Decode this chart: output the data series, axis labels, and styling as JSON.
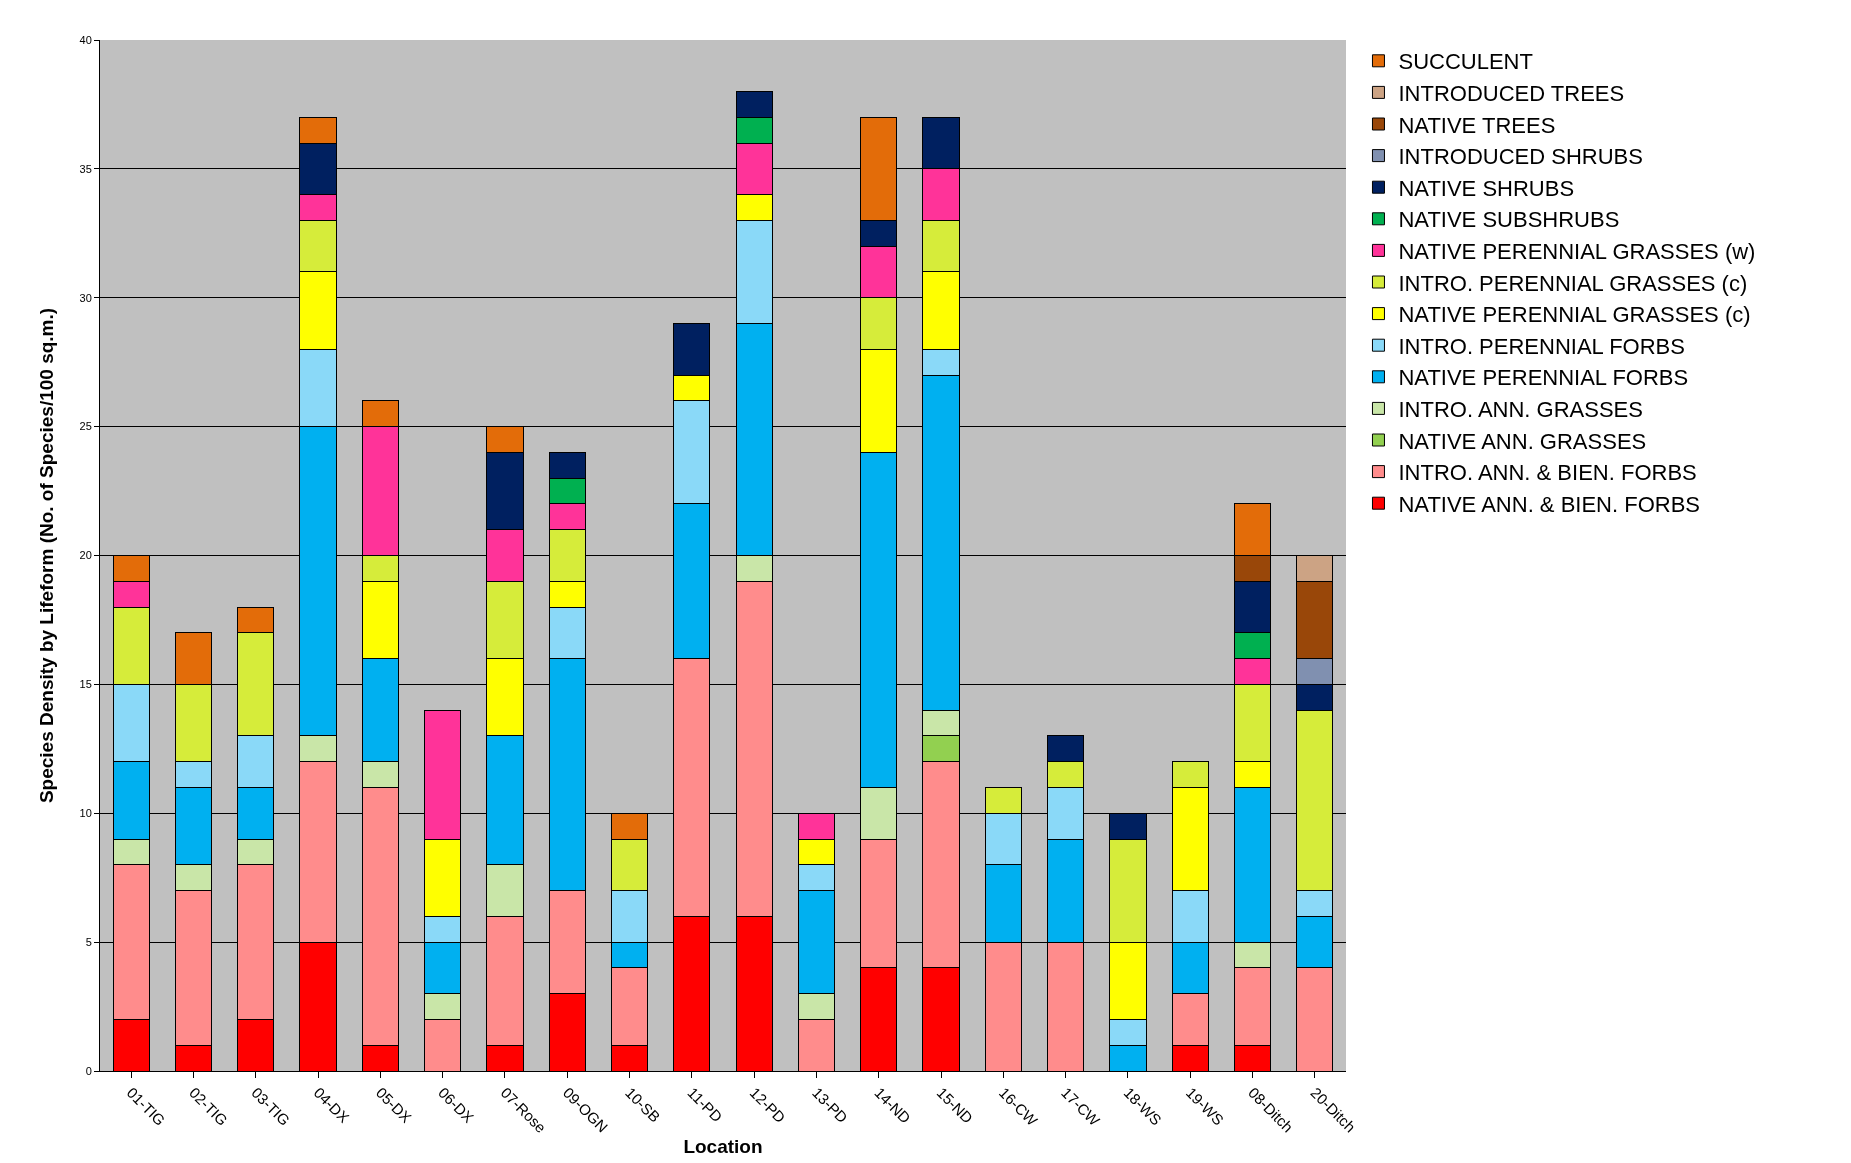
{
  "chart_data": {
    "type": "bar",
    "stacked": true,
    "xlabel": "Location",
    "ylabel": "Species Density by Lifeform (No. of Species/100 sq.m.)",
    "categories": [
      "01-TIG",
      "02-TIG",
      "03-TIG",
      "04-DX",
      "05-DX",
      "06-DX",
      "07-Rose",
      "09-OGN",
      "10-SB",
      "11-PD",
      "12-PD",
      "13-PD",
      "14-ND",
      "15-ND",
      "16-CW",
      "17-CW",
      "18-WS",
      "19-WS",
      "08-Ditch",
      "20-Ditch"
    ],
    "ylim": [
      0,
      40
    ],
    "yticks": [
      0,
      5,
      10,
      15,
      20,
      25,
      30,
      35,
      40
    ],
    "grid": "y",
    "legend": "right",
    "series": [
      {
        "name": "NATIVE ANN. & BIEN. FORBS",
        "color": "#ff0000",
        "values": [
          2,
          1,
          2,
          5,
          1,
          null,
          1,
          3,
          1,
          6,
          6,
          null,
          4,
          4,
          null,
          null,
          null,
          1,
          1,
          null
        ]
      },
      {
        "name": "INTRO. ANN. & BIEN. FORBS",
        "color": "#ff8c8c",
        "values": [
          6,
          6,
          6,
          7,
          10,
          2,
          5,
          4,
          3,
          10,
          13,
          2,
          5,
          8,
          5,
          5,
          null,
          2,
          3,
          4
        ]
      },
      {
        "name": "NATIVE ANN. GRASSES",
        "color": "#92d050",
        "values": [
          null,
          null,
          null,
          null,
          null,
          null,
          null,
          null,
          null,
          null,
          null,
          null,
          null,
          1,
          null,
          null,
          null,
          null,
          null,
          null
        ]
      },
      {
        "name": "INTRO. ANN. GRASSES",
        "color": "#c9e6a8",
        "values": [
          1,
          1,
          1,
          1,
          1,
          1,
          2,
          null,
          null,
          null,
          1,
          1,
          2,
          1,
          null,
          null,
          null,
          null,
          1,
          null
        ]
      },
      {
        "name": "NATIVE PERENNIAL FORBS",
        "color": "#00b0f0",
        "values": [
          3,
          3,
          2,
          12,
          4,
          2,
          5,
          9,
          1,
          6,
          9,
          4,
          13,
          13,
          3,
          4,
          1,
          2,
          6,
          2
        ]
      },
      {
        "name": "INTRO. PERENNIAL FORBS",
        "color": "#8ad9f8",
        "values": [
          3,
          1,
          2,
          3,
          null,
          1,
          null,
          2,
          2,
          4,
          4,
          1,
          null,
          1,
          2,
          2,
          1,
          2,
          null,
          1
        ]
      },
      {
        "name": "NATIVE PERENNIAL GRASSES (c)",
        "color": "#ffff00",
        "values": [
          null,
          null,
          null,
          3,
          3,
          3,
          3,
          1,
          null,
          1,
          1,
          1,
          4,
          3,
          null,
          null,
          3,
          4,
          1,
          null
        ]
      },
      {
        "name": "INTRO. PERENNIAL GRASSES (c)",
        "color": "#d6ec3a",
        "values": [
          3,
          3,
          4,
          2,
          1,
          null,
          3,
          2,
          2,
          null,
          null,
          null,
          2,
          2,
          1,
          1,
          4,
          1,
          3,
          7
        ]
      },
      {
        "name": "NATIVE PERENNIAL GRASSES (w)",
        "color": "#ff3399",
        "values": [
          1,
          null,
          null,
          1,
          5,
          5,
          2,
          1,
          null,
          null,
          2,
          1,
          2,
          2,
          null,
          null,
          null,
          null,
          1,
          null
        ]
      },
      {
        "name": "NATIVE SUBSHRUBS",
        "color": "#00b050",
        "values": [
          null,
          null,
          null,
          null,
          null,
          null,
          null,
          1,
          null,
          null,
          1,
          null,
          null,
          null,
          null,
          null,
          null,
          null,
          1,
          null
        ]
      },
      {
        "name": "NATIVE SHRUBS",
        "color": "#002060",
        "values": [
          null,
          null,
          null,
          2,
          null,
          null,
          3,
          1,
          null,
          2,
          1,
          null,
          1,
          2,
          null,
          1,
          1,
          null,
          2,
          1
        ]
      },
      {
        "name": "INTRODUCED SHRUBS",
        "color": "#8090b0",
        "values": [
          null,
          null,
          null,
          null,
          null,
          null,
          null,
          null,
          null,
          null,
          null,
          null,
          null,
          null,
          null,
          null,
          null,
          null,
          null,
          1
        ]
      },
      {
        "name": "NATIVE TREES",
        "color": "#994709",
        "values": [
          null,
          null,
          null,
          null,
          null,
          null,
          null,
          null,
          null,
          null,
          null,
          null,
          null,
          null,
          null,
          null,
          null,
          null,
          1,
          3
        ]
      },
      {
        "name": "INTRODUCED TREES",
        "color": "#cca384",
        "values": [
          null,
          null,
          null,
          null,
          null,
          null,
          null,
          null,
          null,
          null,
          null,
          null,
          null,
          null,
          null,
          null,
          null,
          null,
          null,
          1
        ]
      },
      {
        "name": "SUCCULENT",
        "color": "#e36c09",
        "values": [
          1,
          2,
          1,
          1,
          1,
          null,
          1,
          null,
          1,
          null,
          null,
          null,
          4,
          null,
          null,
          null,
          null,
          null,
          2,
          null
        ]
      }
    ]
  }
}
